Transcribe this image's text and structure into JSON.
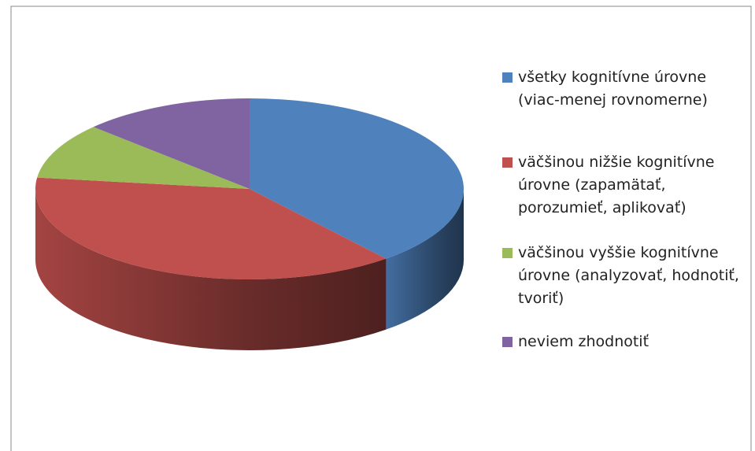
{
  "chart_data": {
    "type": "pie",
    "categories": [
      "všetky kognitívne úrovne (viac-menej rovnomerne)",
      "väčšinou nižšie kognitívne úrovne (zapamätať, porozumieť, aplikovať)",
      "väčšinou vyššie kognitívne úrovne (analyzovať, hodnotiť, tvoriť)",
      "neviem zhodnotiť"
    ],
    "values": [
      39,
      38,
      10,
      13
    ],
    "colors": [
      "#4f81bd",
      "#c0504d",
      "#9bbb59",
      "#8064a2"
    ],
    "legend": "right"
  }
}
